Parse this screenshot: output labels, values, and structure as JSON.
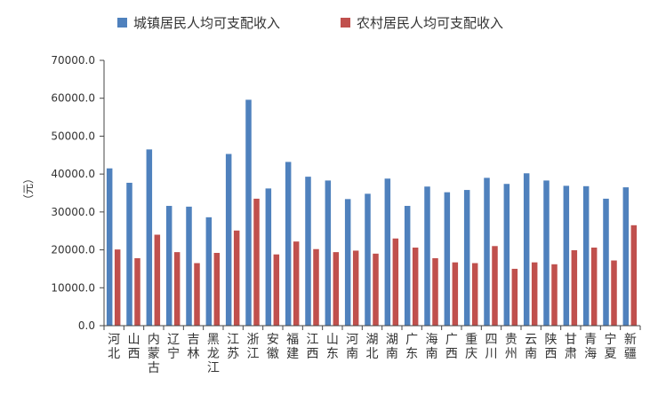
{
  "chart_data": {
    "type": "bar",
    "ylabel": "（元）",
    "ylim": [
      0,
      70000
    ],
    "ytick_step": 10000,
    "ytick_labels": [
      "0.0",
      "10000.0",
      "20000.0",
      "30000.0",
      "40000.0",
      "50000.0",
      "60000.0",
      "70000.0"
    ],
    "legend_position": "top",
    "grid": false,
    "categories": [
      "河北",
      "山西",
      "内蒙古",
      "辽宁",
      "吉林",
      "黑龙江",
      "江苏",
      "浙江",
      "安徽",
      "福建",
      "江西",
      "山东",
      "河南",
      "湖北",
      "湖南",
      "广东",
      "海南",
      "广西",
      "重庆",
      "四川",
      "贵州",
      "云南",
      "陕西",
      "甘肃",
      "青海",
      "宁夏",
      "新疆"
    ],
    "series": [
      {
        "name": "城镇居民人均可支配收入",
        "color": "#4f81bd",
        "values": [
          41500,
          37700,
          46500,
          31600,
          31400,
          28600,
          45300,
          59600,
          36200,
          43200,
          39300,
          38300,
          33400,
          34800,
          38800,
          31600,
          36700,
          35200,
          35800,
          39000,
          37400,
          40200,
          38300,
          36900,
          36800,
          33500,
          36500
        ]
      },
      {
        "name": "农村居民人均可支配收入",
        "color": "#c0504d",
        "values": [
          20100,
          17800,
          24000,
          19400,
          16500,
          19200,
          25100,
          33500,
          18800,
          22200,
          20200,
          19400,
          19800,
          19000,
          23000,
          20600,
          17800,
          16700,
          16500,
          21000,
          15000,
          16700,
          16200,
          19900,
          20600,
          17200,
          26500
        ]
      }
    ]
  }
}
